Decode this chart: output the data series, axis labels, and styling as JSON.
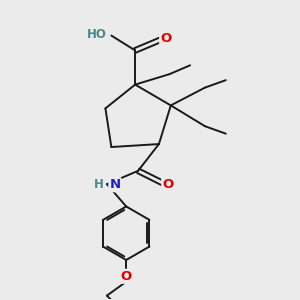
{
  "bg_color": "#ebebeb",
  "bond_color": "#1a1a1a",
  "bond_width": 1.4,
  "atom_colors": {
    "O": "#e00000",
    "N": "#2020cc",
    "C": "#1a1a1a",
    "H_color": "#4a8888"
  },
  "font_size": 8.5,
  "figsize": [
    3.0,
    3.0
  ],
  "dpi": 100
}
